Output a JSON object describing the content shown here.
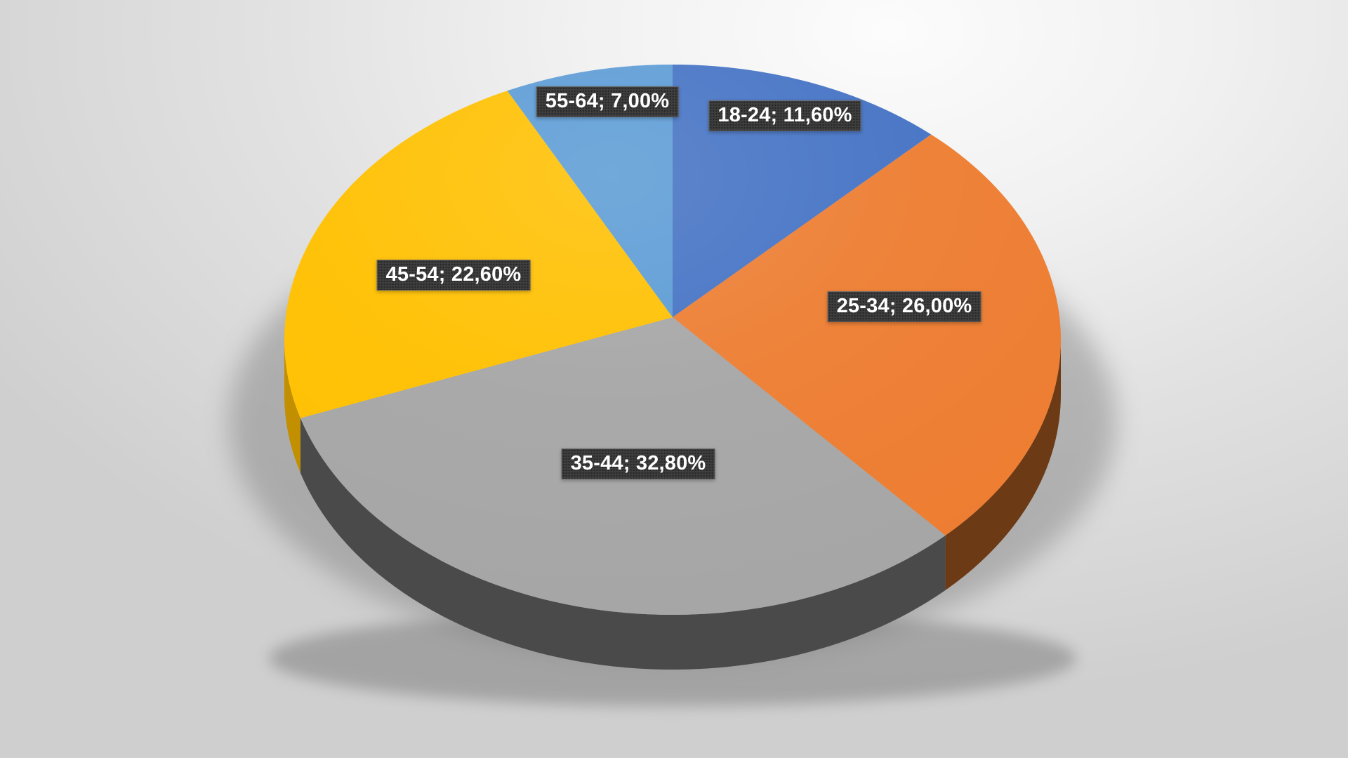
{
  "chart_data": {
    "type": "pie",
    "style": "3d-perspective",
    "title": "",
    "legend": "none",
    "direction": "clockwise",
    "start_angle_deg": 0,
    "categories": [
      "18-24",
      "25-34",
      "35-44",
      "45-54",
      "55-64"
    ],
    "values": [
      11.6,
      26.0,
      32.8,
      22.6,
      7.0
    ],
    "slices": [
      {
        "category": "18-24",
        "value": 11.6,
        "display_label": "18-24; 11,60%",
        "color": "#4472C4",
        "side_color": "#2F5597"
      },
      {
        "category": "25-34",
        "value": 26.0,
        "display_label": "25-34; 26,00%",
        "color": "#ED7D31",
        "side_color": "#6C3A15"
      },
      {
        "category": "35-44",
        "value": 32.8,
        "display_label": "35-44; 32,80%",
        "color": "#A6A6A6",
        "side_color": "#4A4A4A"
      },
      {
        "category": "45-54",
        "value": 22.6,
        "display_label": "45-54; 22,60%",
        "color": "#FFC000",
        "side_color": "#C28F00"
      },
      {
        "category": "55-64",
        "value": 7.0,
        "display_label": "55-64; 7,00%",
        "color": "#5B9BD5",
        "side_color": "#3A6E9E"
      }
    ],
    "label_style": {
      "format": "category; value%",
      "decimal_separator": ",",
      "background": "#3E3E3E",
      "text_color": "#FFFFFF"
    }
  },
  "background": {
    "highlight": "#FCFCFC",
    "base": "#DADADA",
    "shadow": "#6E6E6E"
  }
}
